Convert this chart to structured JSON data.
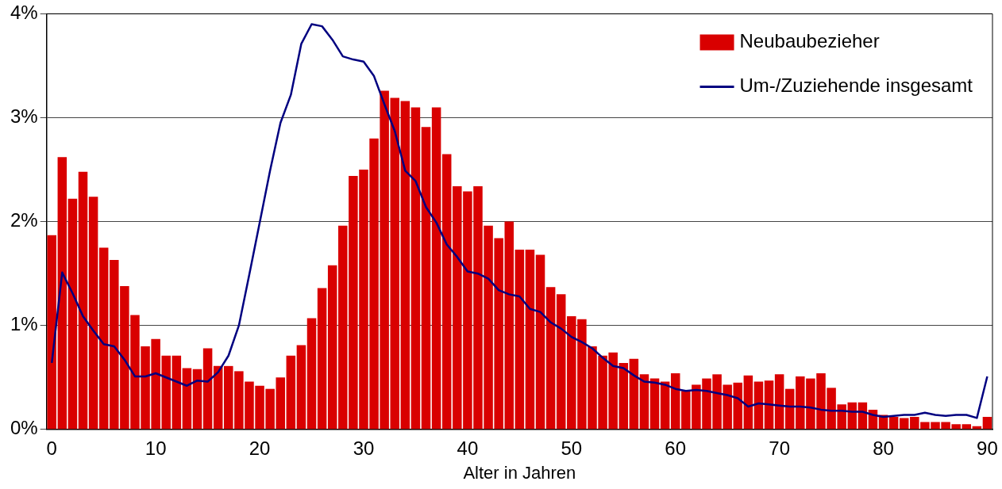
{
  "chart_data": {
    "type": "bar",
    "xlabel": "Alter in Jahren",
    "categories": [
      "0",
      null,
      null,
      null,
      null,
      null,
      null,
      null,
      null,
      null,
      "10",
      null,
      null,
      null,
      null,
      null,
      null,
      null,
      null,
      null,
      "20",
      null,
      null,
      null,
      null,
      null,
      null,
      null,
      null,
      null,
      "30",
      null,
      null,
      null,
      null,
      null,
      null,
      null,
      null,
      null,
      "40",
      null,
      null,
      null,
      null,
      null,
      null,
      null,
      null,
      null,
      "50",
      null,
      null,
      null,
      null,
      null,
      null,
      null,
      null,
      null,
      "60",
      null,
      null,
      null,
      null,
      null,
      null,
      null,
      null,
      null,
      "70",
      null,
      null,
      null,
      null,
      null,
      null,
      null,
      null,
      null,
      "80",
      null,
      null,
      null,
      null,
      null,
      null,
      null,
      null,
      null,
      "90"
    ],
    "series": [
      {
        "name": "Neubaubezieher",
        "color": "#d90000",
        "values": [
          1.87,
          2.62,
          2.22,
          2.48,
          2.24,
          1.75,
          1.63,
          1.38,
          1.1,
          0.8,
          0.87,
          0.71,
          0.71,
          0.59,
          0.58,
          0.78,
          0.61,
          0.61,
          0.56,
          0.46,
          0.42,
          0.39,
          0.5,
          0.71,
          0.81,
          1.07,
          1.36,
          1.58,
          1.96,
          2.44,
          2.5,
          2.8,
          3.26,
          3.19,
          3.16,
          3.1,
          2.91,
          3.1,
          2.65,
          2.34,
          2.29,
          2.34,
          1.96,
          1.84,
          2.0,
          1.73,
          1.73,
          1.68,
          1.37,
          1.3,
          1.09,
          1.06,
          0.8,
          0.71,
          0.74,
          0.64,
          0.68,
          0.53,
          0.49,
          0.46,
          0.54,
          0.37,
          0.43,
          0.49,
          0.53,
          0.43,
          0.45,
          0.52,
          0.46,
          0.47,
          0.53,
          0.39,
          0.51,
          0.49,
          0.54,
          0.4,
          0.24,
          0.26,
          0.26,
          0.19,
          0.14,
          0.12,
          0.11,
          0.12,
          0.07,
          0.07,
          0.07,
          0.05,
          0.05,
          0.03,
          0.12
        ]
      },
      {
        "name": "Um-/Zuziehende insgesamt",
        "type": "line",
        "color": "#000080",
        "values": [
          0.64,
          1.51,
          1.31,
          1.09,
          0.95,
          0.82,
          0.8,
          0.67,
          0.51,
          0.51,
          0.54,
          0.5,
          0.46,
          0.42,
          0.47,
          0.46,
          0.55,
          0.71,
          1.0,
          1.49,
          1.99,
          2.49,
          2.95,
          3.22,
          3.71,
          3.9,
          3.88,
          3.75,
          3.59,
          3.56,
          3.54,
          3.4,
          3.13,
          2.87,
          2.49,
          2.39,
          2.14,
          1.99,
          1.78,
          1.66,
          1.52,
          1.5,
          1.45,
          1.34,
          1.3,
          1.28,
          1.16,
          1.13,
          1.03,
          0.97,
          0.89,
          0.84,
          0.78,
          0.69,
          0.61,
          0.59,
          0.52,
          0.46,
          0.45,
          0.43,
          0.39,
          0.37,
          0.38,
          0.37,
          0.35,
          0.33,
          0.3,
          0.22,
          0.25,
          0.24,
          0.23,
          0.22,
          0.22,
          0.21,
          0.19,
          0.18,
          0.18,
          0.17,
          0.17,
          0.14,
          0.12,
          0.13,
          0.14,
          0.14,
          0.16,
          0.14,
          0.13,
          0.14,
          0.14,
          0.11,
          0.51
        ]
      }
    ],
    "ylim": [
      0,
      4
    ],
    "yticks": [
      {
        "value": 0,
        "label": "0%"
      },
      {
        "value": 1,
        "label": "1%"
      },
      {
        "value": 2,
        "label": "2%"
      },
      {
        "value": 3,
        "label": "3%"
      },
      {
        "value": 4,
        "label": "4%"
      }
    ],
    "grid": "y",
    "legend": "top right",
    "marker": "none",
    "line_style": "solid"
  }
}
